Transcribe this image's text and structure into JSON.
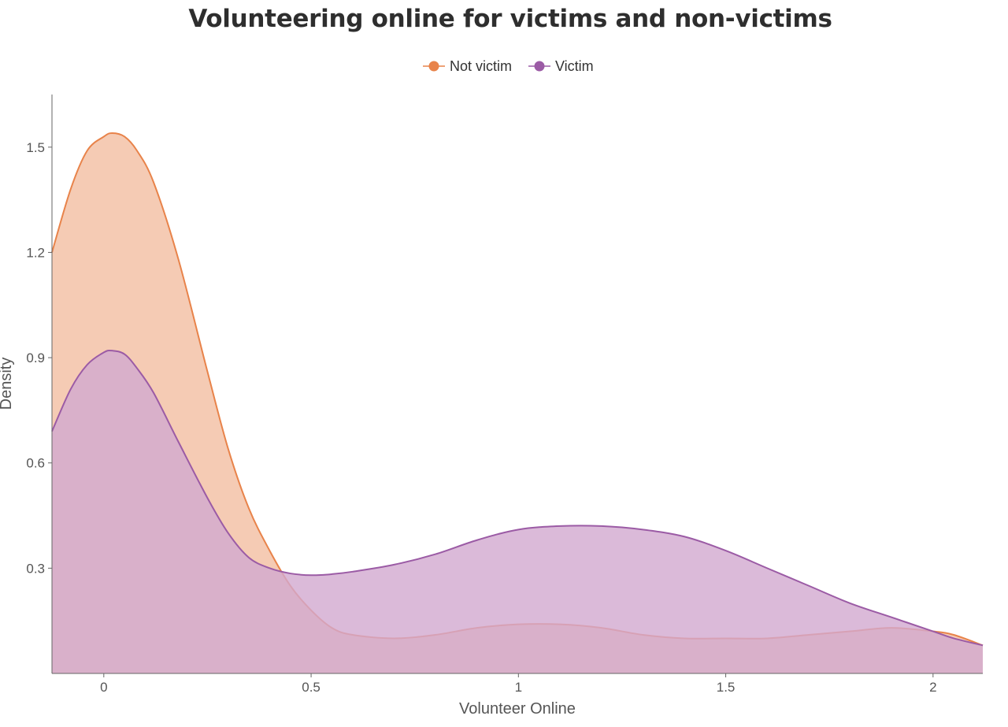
{
  "chart_data": {
    "type": "area",
    "title": "Volunteering online for victims and non-victims",
    "xlabel": "Volunteer Online",
    "ylabel": "Density",
    "xlim": [
      -0.125,
      2.12
    ],
    "ylim": [
      0,
      1.65
    ],
    "x_ticks": [
      0,
      0.5,
      1,
      1.5,
      2
    ],
    "y_ticks": [
      0.3,
      0.6,
      0.9,
      1.2,
      1.5
    ],
    "x_tick_labels": [
      "0",
      "0.5",
      "1",
      "1.5",
      "2"
    ],
    "y_tick_labels": [
      "0.3",
      "0.6",
      "0.9",
      "1.2",
      "1.5"
    ],
    "grid": false,
    "legend_position": "top-center",
    "series": [
      {
        "name": "Not victim",
        "color": "#e8834a",
        "fill": "#f5cbb4",
        "x": [
          -0.125,
          -0.08,
          -0.04,
          0.0,
          0.02,
          0.05,
          0.08,
          0.12,
          0.18,
          0.25,
          0.3,
          0.35,
          0.4,
          0.45,
          0.5,
          0.55,
          0.6,
          0.7,
          0.8,
          0.9,
          1.0,
          1.1,
          1.2,
          1.3,
          1.4,
          1.5,
          1.6,
          1.7,
          1.8,
          1.9,
          2.0,
          2.05,
          2.12
        ],
        "y": [
          1.2,
          1.38,
          1.49,
          1.53,
          1.54,
          1.53,
          1.49,
          1.4,
          1.18,
          0.86,
          0.64,
          0.47,
          0.35,
          0.25,
          0.18,
          0.13,
          0.11,
          0.1,
          0.11,
          0.13,
          0.14,
          0.14,
          0.13,
          0.11,
          0.1,
          0.1,
          0.1,
          0.11,
          0.12,
          0.13,
          0.12,
          0.11,
          0.08
        ]
      },
      {
        "name": "Victim",
        "color": "#9b5ba5",
        "fill": "#d2a9d0",
        "x": [
          -0.125,
          -0.08,
          -0.04,
          0.0,
          0.02,
          0.05,
          0.08,
          0.12,
          0.18,
          0.25,
          0.3,
          0.35,
          0.4,
          0.45,
          0.5,
          0.55,
          0.6,
          0.7,
          0.8,
          0.9,
          1.0,
          1.1,
          1.2,
          1.3,
          1.4,
          1.5,
          1.6,
          1.7,
          1.8,
          1.9,
          2.0,
          2.05,
          2.12
        ],
        "y": [
          0.69,
          0.81,
          0.88,
          0.915,
          0.92,
          0.91,
          0.87,
          0.8,
          0.66,
          0.5,
          0.4,
          0.33,
          0.3,
          0.285,
          0.28,
          0.283,
          0.29,
          0.31,
          0.34,
          0.38,
          0.41,
          0.42,
          0.42,
          0.41,
          0.39,
          0.35,
          0.3,
          0.25,
          0.2,
          0.16,
          0.12,
          0.1,
          0.08
        ]
      }
    ]
  }
}
